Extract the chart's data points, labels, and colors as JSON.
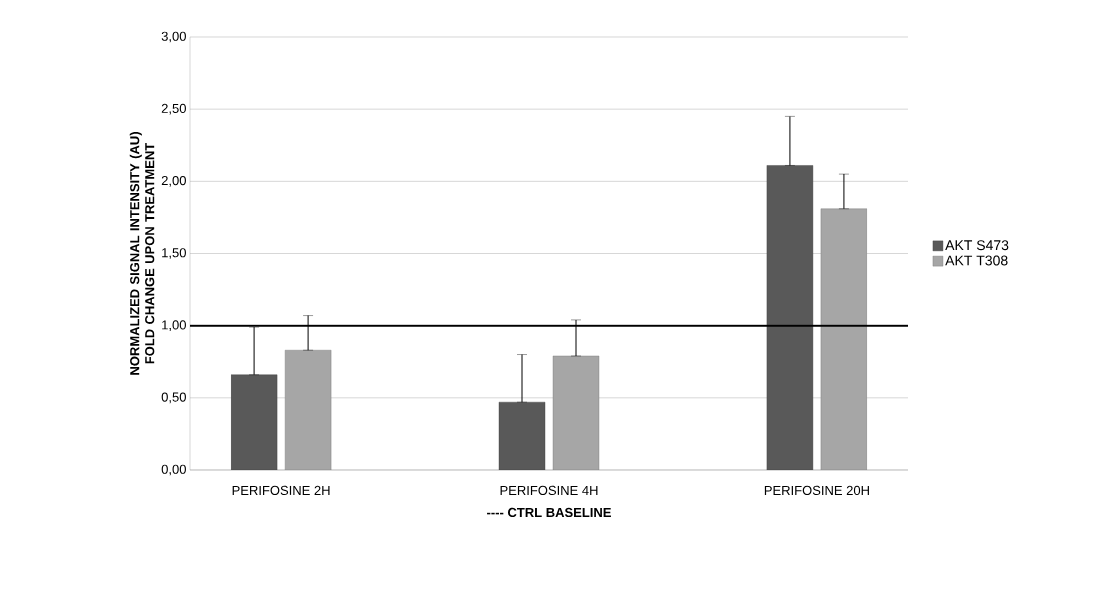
{
  "chart_data": {
    "type": "bar",
    "categories": [
      "PERIFOSINE 2H",
      "PERIFOSINE 4H",
      "PERIFOSINE 20H"
    ],
    "series": [
      {
        "name": "AKT S473",
        "color": "#595959",
        "values": [
          0.66,
          0.47,
          2.11
        ],
        "errors": [
          [
            0.66,
            0.99
          ],
          [
            0.47,
            0.8
          ],
          [
            2.11,
            2.45
          ]
        ]
      },
      {
        "name": "AKT T308",
        "color": "#a6a6a6",
        "values": [
          0.83,
          0.79,
          1.81
        ],
        "errors": [
          [
            0.83,
            1.07
          ],
          [
            0.79,
            1.04
          ],
          [
            1.81,
            2.05
          ]
        ]
      }
    ],
    "xlabel": "---- CTRL BASELINE",
    "ylabel": "NORMALIZED SIGNAL INTENSITY (AU) FOLD CHANGE UPON TREATMENT",
    "ylim": [
      0,
      3
    ],
    "yticks": [
      {
        "value": 0,
        "label": "0,00"
      },
      {
        "value": 0.5,
        "label": "0,50"
      },
      {
        "value": 1,
        "label": "1,00"
      },
      {
        "value": 1.5,
        "label": "1,50"
      },
      {
        "value": 2,
        "label": "2,00"
      },
      {
        "value": 2.5,
        "label": "2,50"
      },
      {
        "value": 3,
        "label": "3,00"
      }
    ],
    "ref_lines": [
      {
        "axis": "y",
        "value": 1,
        "color": "#000000"
      }
    ],
    "grid": "y",
    "legend": "right"
  }
}
